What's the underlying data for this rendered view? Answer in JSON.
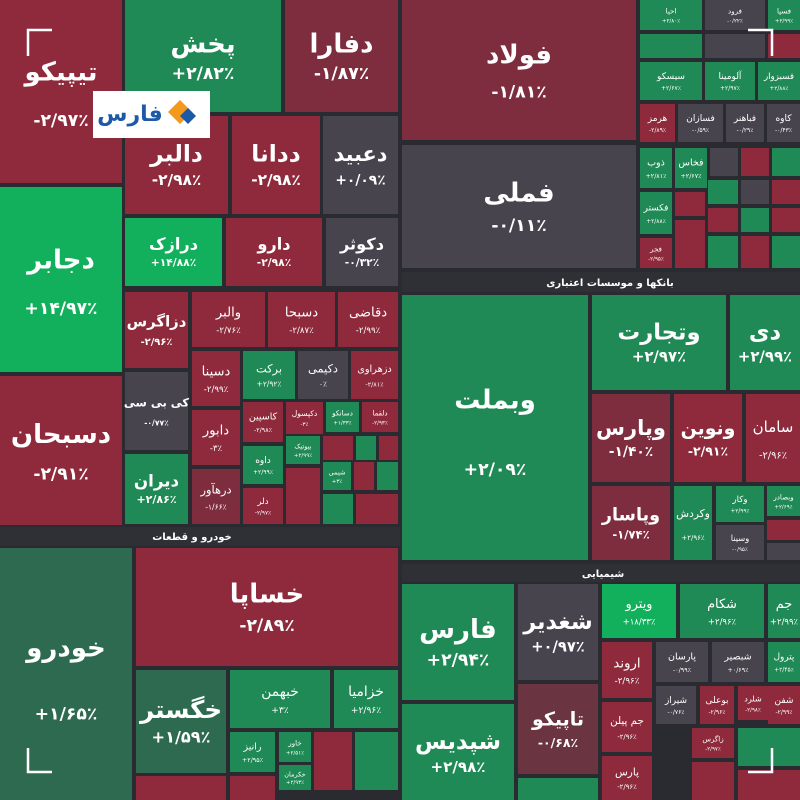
{
  "logo": "فارس",
  "sections": [
    "خودرو و قطعات",
    "بانکها و موسسات اعتباری",
    "شیمیایی"
  ],
  "tiles": [
    {
      "name": "تیپیکو",
      "change": "-۲/۹۷٪",
      "color": "#8e2a3c"
    },
    {
      "name": "دجابر",
      "change": "+۱۴/۹۷٪",
      "color": "#12b05c"
    },
    {
      "name": "دسبحان",
      "change": "-۲/۹۱٪",
      "color": "#8e2a3c"
    },
    {
      "name": "پخش",
      "change": "+۲/۸۲٪",
      "color": "#1f8a55"
    },
    {
      "name": "دفارا",
      "change": "-۱/۸۷٪",
      "color": "#7d2d3d"
    },
    {
      "name": "دالبر",
      "change": "-۲/۹۸٪",
      "color": "#8e2a3c"
    },
    {
      "name": "ددانا",
      "change": "-۲/۹۸٪",
      "color": "#8e2a3c"
    },
    {
      "name": "دعبید",
      "change": "+۰/۰۹٪",
      "color": "#47444d"
    },
    {
      "name": "درازک",
      "change": "+۱۴/۸۸٪",
      "color": "#12b05c"
    },
    {
      "name": "دارو",
      "change": "-۲/۹۸٪",
      "color": "#8e2a3c"
    },
    {
      "name": "دکوثر",
      "change": "-۰/۳۲٪",
      "color": "#47444d"
    },
    {
      "name": "دزاگرس",
      "change": "-۲/۹۶٪",
      "color": "#8e2a3c"
    },
    {
      "name": "والبر",
      "change": "-۲/۷۶٪",
      "color": "#8e2a3c"
    },
    {
      "name": "دسبحا",
      "change": "-۲/۸۷٪",
      "color": "#8e2a3c"
    },
    {
      "name": "دقاضی",
      "change": "-۲/۹۹٪",
      "color": "#8e2a3c"
    },
    {
      "name": "کی بی سی",
      "change": "-۰/۷۷٪",
      "color": "#47444d"
    },
    {
      "name": "دسینا",
      "change": "-۲/۹۹٪",
      "color": "#8e2a3c"
    },
    {
      "name": "برکت",
      "change": "+۲/۹۲٪",
      "color": "#1f8a55"
    },
    {
      "name": "دکیمی",
      "change": "۰٪",
      "color": "#47444d"
    },
    {
      "name": "دزهراوی",
      "change": "-۲/۸۱٪",
      "color": "#8e2a3c"
    },
    {
      "name": "دابور",
      "change": "-۳٪",
      "color": "#8e2a3c"
    },
    {
      "name": "کاسپین",
      "change": "-۲/۹۸٪",
      "color": "#8e2a3c"
    },
    {
      "name": "دکپسول",
      "change": "-۳٪",
      "color": "#8e2a3c"
    },
    {
      "name": "دسانکو",
      "change": "+۱/۳۳٪",
      "color": "#1f8a55"
    },
    {
      "name": "دلقما",
      "change": "-۲/۹۳٪",
      "color": "#8e2a3c"
    },
    {
      "name": "دیران",
      "change": "+۲/۸۶٪",
      "color": "#1f8a55"
    },
    {
      "name": "درهآور",
      "change": "-۱/۶۶٪",
      "color": "#7d2d3d"
    },
    {
      "name": "داوه",
      "change": "+۲/۹۹٪",
      "color": "#1f8a55"
    },
    {
      "name": "بیوتیک",
      "change": "+۲/۹۹٪",
      "color": "#1f8a55"
    },
    {
      "name": "شیمی",
      "change": "+۳٪",
      "color": "#1f8a55"
    },
    {
      "name": "دلر",
      "change": "-۲/۹۷٪",
      "color": "#8e2a3c"
    },
    {
      "name": "خودرو",
      "change": "+۱/۶۵٪",
      "color": "#2d6a4f"
    },
    {
      "name": "خساپا",
      "change": "-۲/۸۹٪",
      "color": "#8e2a3c"
    },
    {
      "name": "خگستر",
      "change": "+۱/۵۹٪",
      "color": "#2d6a4f"
    },
    {
      "name": "خبهمن",
      "change": "+۳٪",
      "color": "#1f8a55"
    },
    {
      "name": "خزامیا",
      "change": "+۲/۹۶٪",
      "color": "#1f8a55"
    },
    {
      "name": "رانیز",
      "change": "+۲/۹۵٪",
      "color": "#1f8a55"
    },
    {
      "name": "خاور",
      "change": "+۲/۵۱٪",
      "color": "#1f8a55"
    },
    {
      "name": "خکرمان",
      "change": "+۲/۹۳٪",
      "color": "#1f8a55"
    },
    {
      "name": "فولاد",
      "change": "-۱/۸۱٪",
      "color": "#7d2d3d"
    },
    {
      "name": "فملی",
      "change": "-۰/۱۱٪",
      "color": "#47444d"
    },
    {
      "name": "احیا",
      "change": "+۲/۸۰٪",
      "color": "#1f8a55"
    },
    {
      "name": "فرود",
      "change": "-۰/۲۲٪",
      "color": "#47444d"
    },
    {
      "name": "فسپا",
      "change": "+۲/۹۹٪",
      "color": "#1f8a55"
    },
    {
      "name": "سیسکو",
      "change": "+۲/۶۷٪",
      "color": "#1f8a55"
    },
    {
      "name": "آلومینا",
      "change": "+۲/۹۷٪",
      "color": "#1f8a55"
    },
    {
      "name": "فسبزوار",
      "change": "+۲/۸۸٪",
      "color": "#1f8a55"
    },
    {
      "name": "هرمز",
      "change": "-۲/۸۹٪",
      "color": "#8e2a3c"
    },
    {
      "name": "فسازان",
      "change": "-۰/۵۹٪",
      "color": "#47444d"
    },
    {
      "name": "فباهنر",
      "change": "-۰/۲۹٪",
      "color": "#47444d"
    },
    {
      "name": "کاوه",
      "change": "-۰/۴۳٪",
      "color": "#47444d"
    },
    {
      "name": "ذوب",
      "change": "+۲/۸۱٪",
      "color": "#1f8a55"
    },
    {
      "name": "فخاس",
      "change": "+۲/۶۷٪",
      "color": "#1f8a55"
    },
    {
      "name": "فکستر",
      "change": "+۲/۸۸٪",
      "color": "#1f8a55"
    },
    {
      "name": "فجر",
      "change": "-۲/۹۵٪",
      "color": "#8e2a3c"
    },
    {
      "name": "وبملت",
      "change": "+۲/۰۹٪",
      "color": "#1f8a55"
    },
    {
      "name": "وتجارت",
      "change": "+۲/۹۷٪",
      "color": "#1f8a55"
    },
    {
      "name": "دی",
      "change": "+۲/۹۹٪",
      "color": "#1f8a55"
    },
    {
      "name": "وپارس",
      "change": "-۱/۴۰٪",
      "color": "#7d2d3d"
    },
    {
      "name": "ونوین",
      "change": "-۲/۹۱٪",
      "color": "#8e2a3c"
    },
    {
      "name": "سامان",
      "change": "-۲/۹۶٪",
      "color": "#8e2a3c"
    },
    {
      "name": "وپاسار",
      "change": "-۱/۷۴٪",
      "color": "#7d2d3d"
    },
    {
      "name": "وکردش",
      "change": "+۲/۹۶٪",
      "color": "#1f8a55"
    },
    {
      "name": "وکار",
      "change": "+۲/۹۹٪",
      "color": "#1f8a55"
    },
    {
      "name": "وبصادر",
      "change": "+۲/۶۹٪",
      "color": "#1f8a55"
    },
    {
      "name": "وسینا",
      "change": "-۰/۹۵٪",
      "color": "#47444d"
    },
    {
      "name": "فارس",
      "change": "+۲/۹۴٪",
      "color": "#1f8a55"
    },
    {
      "name": "شپدیس",
      "change": "+۲/۹۸٪",
      "color": "#1f8a55"
    },
    {
      "name": "شغدیر",
      "change": "+۰/۹۷٪",
      "color": "#47444d"
    },
    {
      "name": "تاپیکو",
      "change": "-۰/۶۸٪",
      "color": "#6a3440"
    },
    {
      "name": "ویترو",
      "change": "+۱۸/۳۳٪",
      "color": "#12b05c"
    },
    {
      "name": "شکام",
      "change": "+۲/۹۶٪",
      "color": "#1f8a55"
    },
    {
      "name": "جم",
      "change": "+۲/۹۹٪",
      "color": "#1f8a55"
    },
    {
      "name": "اروند",
      "change": "-۲/۹۶٪",
      "color": "#8e2a3c"
    },
    {
      "name": "پارسان",
      "change": "-۰/۹۹٪",
      "color": "#47444d"
    },
    {
      "name": "شبصیر",
      "change": "+۰/۶۹٪",
      "color": "#47444d"
    },
    {
      "name": "پترول",
      "change": "+۲/۴۵٪",
      "color": "#1f8a55"
    },
    {
      "name": "جم پیلن",
      "change": "-۲/۹۶٪",
      "color": "#8e2a3c"
    },
    {
      "name": "شیراز",
      "change": "-۰/۷۶٪",
      "color": "#47444d"
    },
    {
      "name": "بوعلی",
      "change": "-۲/۹۶٪",
      "color": "#8e2a3c"
    },
    {
      "name": "شلرد",
      "change": "-۲/۹۸٪",
      "color": "#8e2a3c"
    },
    {
      "name": "شفن",
      "change": "-۲/۹۹٪",
      "color": "#8e2a3c"
    },
    {
      "name": "زاگرس",
      "change": "-۲/۹۷٪",
      "color": "#8e2a3c"
    },
    {
      "name": "پارس",
      "change": "-۲/۹۶٪",
      "color": "#8e2a3c"
    }
  ]
}
